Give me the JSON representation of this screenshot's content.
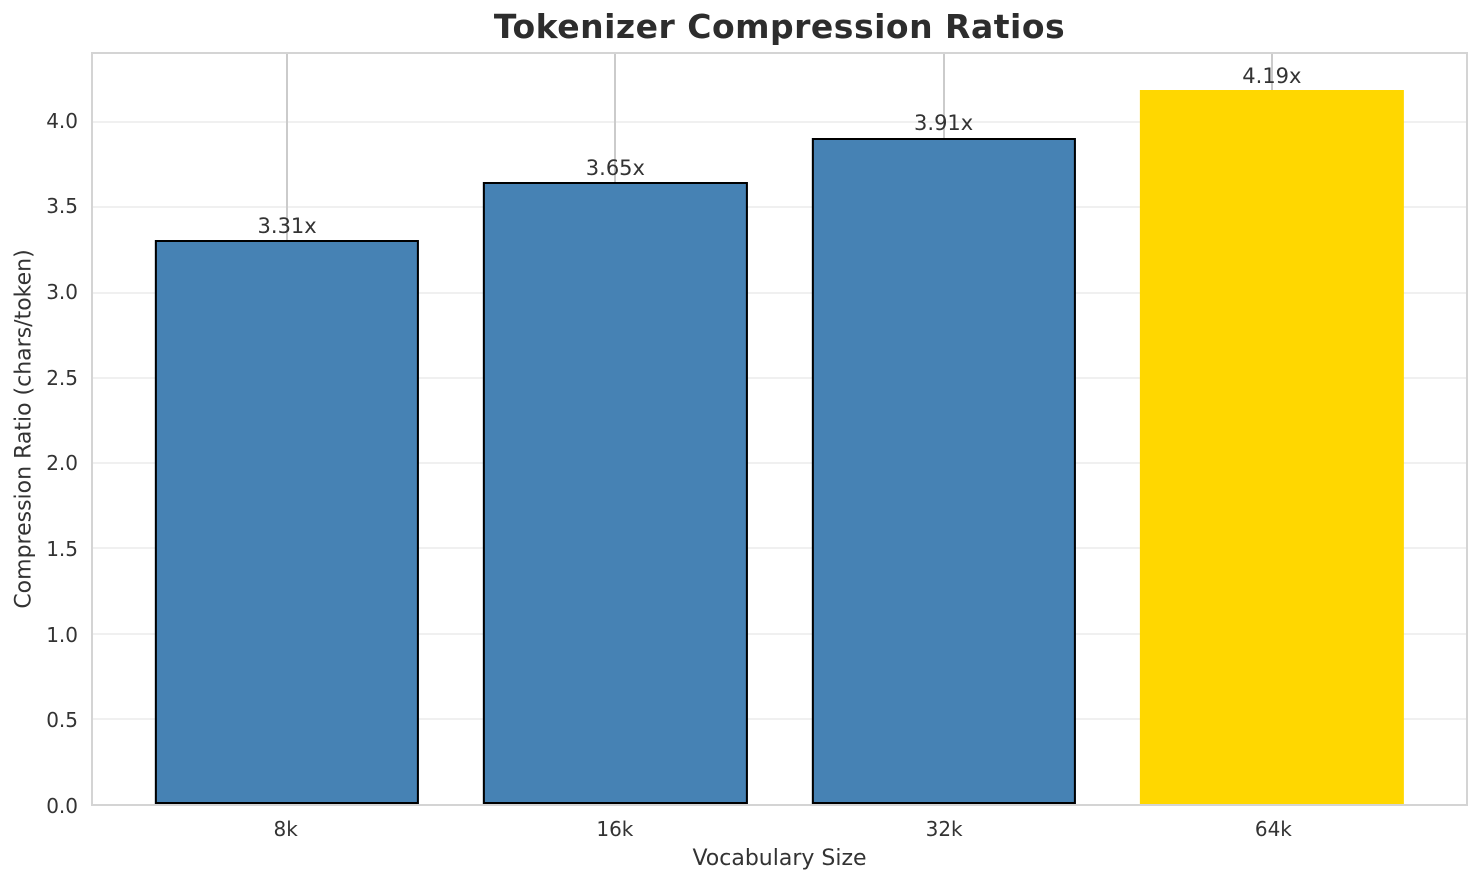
{
  "chart_data": {
    "type": "bar",
    "title": "Tokenizer Compression Ratios",
    "xlabel": "Vocabulary Size",
    "ylabel": "Compression Ratio (chars/token)",
    "categories": [
      "8k",
      "16k",
      "32k",
      "64k"
    ],
    "values": [
      3.31,
      3.65,
      3.91,
      4.19
    ],
    "bar_labels": [
      "3.31x",
      "3.65x",
      "3.91x",
      "4.19x"
    ],
    "bar_colors": [
      "#4682B4",
      "#4682B4",
      "#4682B4",
      "#FFD700"
    ],
    "bar_edge_colors": [
      "#000000",
      "#000000",
      "#000000",
      "none"
    ],
    "base_color": "#4682B4",
    "highlight_color": "#FFD700",
    "ylim": [
      0,
      4.4
    ],
    "yticks": [
      0.0,
      0.5,
      1.0,
      1.5,
      2.0,
      2.5,
      3.0,
      3.5,
      4.0
    ],
    "ytick_labels": [
      "0.0",
      "0.5",
      "1.0",
      "1.5",
      "2.0",
      "2.5",
      "3.0",
      "3.5",
      "4.0"
    ],
    "grid": true,
    "legend_position": "none"
  }
}
